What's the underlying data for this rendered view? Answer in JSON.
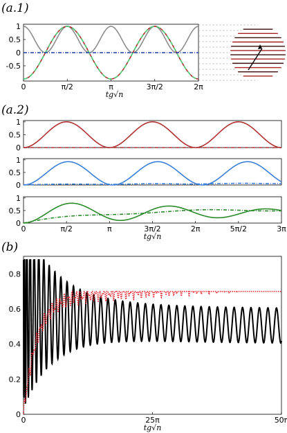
{
  "panel_labels": [
    "(a.1)",
    "(a.2)",
    "(b)"
  ],
  "xlabel_text": "tg√n",
  "colors": {
    "gray": "#8c8c8c",
    "red": "#b03030",
    "green_light": "#4ed07a",
    "blue": "#3a7fd8",
    "blue_dark": "#1f3fa0",
    "green": "#2a8a2a",
    "black": "#000000",
    "red_bright": "#e8202a",
    "sphere_red": "#a82020",
    "sphere_dark": "#3a0a0a"
  },
  "chart_data": [
    {
      "id": "a1",
      "type": "line",
      "panel_label": "(a.1)",
      "xlabel": "tg√n",
      "xlim": [
        0,
        6.2832
      ],
      "ylim": [
        -1.08,
        1.08
      ],
      "yticks": [
        1,
        0.5,
        0,
        -0.5
      ],
      "ytick_labels": [
        "1",
        "0.5",
        "0",
        "-0.5"
      ],
      "xticks": [
        0,
        1.5708,
        3.1416,
        4.7124,
        6.2832
      ],
      "xtick_labels": [
        "0",
        "π/2",
        "π",
        "3π/2",
        "2π"
      ],
      "series": [
        {
          "color_key": "gray",
          "style": "solid",
          "function": "cos2",
          "formula": "cos(2x)^2"
        },
        {
          "color_key": "red",
          "style": "solid",
          "function": "mcos2",
          "formula": "-cos(2x)"
        },
        {
          "color_key": "green_light",
          "style": "dashed",
          "function": "mcos2",
          "formula": "-cos(2x)"
        },
        {
          "color_key": "blue_dark",
          "style": "dashdot",
          "function": "zero",
          "formula": "0"
        }
      ]
    },
    {
      "id": "a2_1",
      "type": "line",
      "panel_label": "(a.2)",
      "xlim": [
        0,
        9.4248
      ],
      "ylim": [
        0,
        1.05
      ],
      "yticks": [
        1,
        0.5,
        0
      ],
      "ytick_labels": [
        "1",
        "0.5",
        "0"
      ],
      "series": [
        {
          "color_key": "red",
          "style": "solid",
          "function": "sin2x"
        },
        {
          "color_key": "red",
          "style": "dashdot",
          "function": "zero"
        }
      ]
    },
    {
      "id": "a2_2",
      "type": "line",
      "xlim": [
        0,
        9.4248
      ],
      "ylim": [
        0,
        1.05
      ],
      "yticks": [
        1,
        0.5,
        0
      ],
      "ytick_labels": [
        "1",
        "0.5",
        "0"
      ],
      "series": [
        {
          "color_key": "blue",
          "style": "solid",
          "function": "blue_solid"
        },
        {
          "color_key": "blue",
          "style": "dashdot",
          "function": "blue_dash"
        }
      ]
    },
    {
      "id": "a2_3",
      "type": "line",
      "xlabel": "tg√n",
      "xlim": [
        0,
        9.4248
      ],
      "ylim": [
        0,
        1.05
      ],
      "yticks": [
        1,
        0.5,
        0
      ],
      "ytick_labels": [
        "1",
        "0.5",
        "0"
      ],
      "xticks": [
        0,
        1.5708,
        3.1416,
        4.7124,
        6.2832,
        7.854,
        9.4248
      ],
      "xtick_labels": [
        "0",
        "π/2",
        "π",
        "3π/2",
        "2π",
        "5π/2",
        "3π"
      ],
      "series": [
        {
          "color_key": "green",
          "style": "solid",
          "function": "green_solid"
        },
        {
          "color_key": "green",
          "style": "dashdot",
          "function": "green_dash"
        }
      ]
    },
    {
      "id": "b",
      "type": "line",
      "panel_label": "(b)",
      "xlabel": "tg√n",
      "xlim": [
        0,
        157.08
      ],
      "ylim": [
        0,
        0.9
      ],
      "yticks": [
        0,
        0.2,
        0.4,
        0.6,
        0.8
      ],
      "ytick_labels": [
        "0",
        "0.2",
        "0.4",
        "0.6",
        "0.8"
      ],
      "xticks": [
        0,
        78.54,
        157.08
      ],
      "xtick_labels": [
        "0",
        "25π",
        "50π"
      ],
      "series": [
        {
          "color_key": "black",
          "style": "solid",
          "function": "b_black"
        },
        {
          "color_key": "red_bright",
          "style": "dotted",
          "function": "b_red"
        }
      ]
    }
  ]
}
